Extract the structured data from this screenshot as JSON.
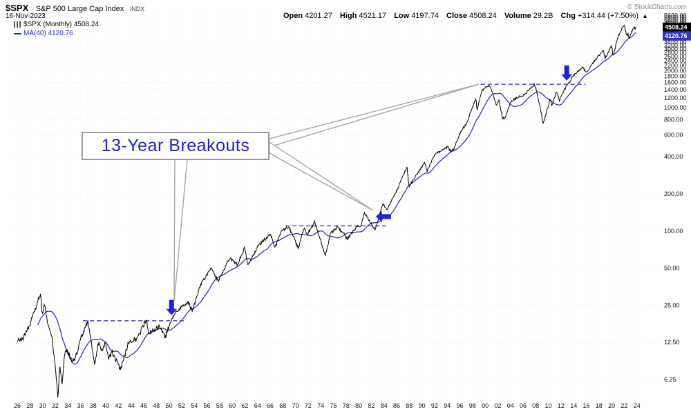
{
  "header": {
    "symbol": "$SPX",
    "name": "S&P 500 Large Cap Index",
    "exchange": "INDX",
    "date": "16-Nov-2023",
    "copyright": "© StockCharts.com",
    "quote": {
      "open_label": "Open",
      "open": "4201.27",
      "high_label": "High",
      "high": "4521.17",
      "low_label": "Low",
      "low": "4197.74",
      "close_label": "Close",
      "close": "4508.24",
      "volume_label": "Volume",
      "volume": "29.2B",
      "chg_label": "Chg",
      "chg": "+314.44 (+7.50%)",
      "chg_arrow": "▲"
    }
  },
  "legend": {
    "series": "$SPX (Monthly) 4508.24",
    "ma": "MA(40) 4120.76"
  },
  "annotation": {
    "text": "13-Year Breakouts"
  },
  "axis_tags": {
    "price": "4508.24",
    "ma": "4120.76"
  },
  "colors": {
    "price_line": "#000000",
    "ma_line": "#3333aa",
    "accent": "#2222cc",
    "arrow": "#2222dd",
    "annotation_text": "#2222cc",
    "tag_price_bg": "#000000",
    "tag_ma_bg": "#3333cc",
    "callout_border": "#aaaaaa"
  },
  "chart_data": {
    "type": "line",
    "title": "$SPX Monthly close with 40-month moving average, log scale",
    "x_unit": "year",
    "x_range": [
      1926,
      2024
    ],
    "y_scale": "log",
    "y_ticks": [
      6.25,
      12.5,
      25,
      50,
      100,
      200,
      400,
      600,
      800,
      1000,
      1200,
      1400,
      1600,
      1800,
      2000,
      2200,
      2400,
      2600,
      2800,
      3000,
      3200,
      3400,
      3600,
      3800,
      4000,
      4200,
      4400,
      4600,
      4800,
      5000,
      5200,
      5400,
      5600
    ],
    "x_tick_labels": [
      "26",
      "28",
      "30",
      "32",
      "34",
      "36",
      "38",
      "40",
      "42",
      "44",
      "46",
      "48",
      "50",
      "52",
      "54",
      "56",
      "58",
      "60",
      "62",
      "64",
      "66",
      "68",
      "70",
      "72",
      "74",
      "76",
      "78",
      "80",
      "82",
      "84",
      "86",
      "88",
      "90",
      "92",
      "94",
      "96",
      "98",
      "00",
      "02",
      "04",
      "06",
      "08",
      "10",
      "12",
      "14",
      "16",
      "18",
      "20",
      "22",
      "24"
    ],
    "series": [
      {
        "name": "$SPX monthly close",
        "color": "#000000",
        "anchors": [
          [
            1926.0,
            12.8
          ],
          [
            1926.9,
            13.5
          ],
          [
            1928.0,
            17.5
          ],
          [
            1929.0,
            24.9
          ],
          [
            1929.67,
            31.3
          ],
          [
            1929.92,
            21.4
          ],
          [
            1930.3,
            25.3
          ],
          [
            1931.0,
            15.9
          ],
          [
            1931.45,
            14.3
          ],
          [
            1932.0,
            8.0
          ],
          [
            1932.45,
            4.4
          ],
          [
            1932.7,
            8.1
          ],
          [
            1933.1,
            5.8
          ],
          [
            1933.55,
            10.9
          ],
          [
            1934.0,
            10.5
          ],
          [
            1934.6,
            8.9
          ],
          [
            1935.2,
            9.3
          ],
          [
            1936.0,
            13.4
          ],
          [
            1937.15,
            18.7
          ],
          [
            1938.25,
            8.5
          ],
          [
            1938.9,
            13.1
          ],
          [
            1939.3,
            10.6
          ],
          [
            1940.0,
            12.3
          ],
          [
            1940.45,
            9.3
          ],
          [
            1941.0,
            10.5
          ],
          [
            1942.3,
            7.5
          ],
          [
            1943.5,
            12.0
          ],
          [
            1945.0,
            13.5
          ],
          [
            1946.4,
            19.3
          ],
          [
            1946.8,
            14.7
          ],
          [
            1948.4,
            16.7
          ],
          [
            1949.45,
            13.9
          ],
          [
            1950.0,
            16.9
          ],
          [
            1951.0,
            21.7
          ],
          [
            1952.0,
            24.2
          ],
          [
            1953.0,
            26.4
          ],
          [
            1953.7,
            22.7
          ],
          [
            1955.0,
            36.6
          ],
          [
            1956.6,
            49.6
          ],
          [
            1957.8,
            39.2
          ],
          [
            1959.6,
            60.5
          ],
          [
            1960.8,
            53.4
          ],
          [
            1961.95,
            72.6
          ],
          [
            1962.5,
            52.3
          ],
          [
            1964.0,
            75.0
          ],
          [
            1965.0,
            84.8
          ],
          [
            1966.1,
            93.3
          ],
          [
            1966.75,
            73.2
          ],
          [
            1967.7,
            97.6
          ],
          [
            1968.9,
            108.4
          ],
          [
            1970.45,
            72.7
          ],
          [
            1971.3,
            104.8
          ],
          [
            1971.9,
            94.2
          ],
          [
            1973.0,
            118.1
          ],
          [
            1974.75,
            63.5
          ],
          [
            1975.5,
            95.2
          ],
          [
            1976.7,
            107.8
          ],
          [
            1978.2,
            87.0
          ],
          [
            1979.7,
            109.3
          ],
          [
            1980.25,
            106.3
          ],
          [
            1980.9,
            140.5
          ],
          [
            1982.6,
            102.4
          ],
          [
            1983.8,
            166.1
          ],
          [
            1984.55,
            150.6
          ],
          [
            1986.0,
            211.8
          ],
          [
            1987.65,
            329.8
          ],
          [
            1987.95,
            230.3
          ],
          [
            1989.0,
            277.7
          ],
          [
            1990.45,
            361.2
          ],
          [
            1990.8,
            304.0
          ],
          [
            1992.0,
            417.1
          ],
          [
            1994.1,
            481.6
          ],
          [
            1994.5,
            444.3
          ],
          [
            1995.0,
            459.3
          ],
          [
            1996.0,
            615.9
          ],
          [
            1997.0,
            740.7
          ],
          [
            1998.55,
            1186.8
          ],
          [
            1998.7,
            957.3
          ],
          [
            1999.5,
            1372.7
          ],
          [
            2000.2,
            1498.6
          ],
          [
            2000.65,
            1517.7
          ],
          [
            2001.1,
            1366.0
          ],
          [
            2001.75,
            1040.9
          ],
          [
            2002.2,
            1147.4
          ],
          [
            2002.75,
            815.3
          ],
          [
            2003.2,
            841.2
          ],
          [
            2004.0,
            1111.9
          ],
          [
            2005.0,
            1211.9
          ],
          [
            2006.0,
            1248.3
          ],
          [
            2007.8,
            1549.4
          ],
          [
            2008.2,
            1322.7
          ],
          [
            2008.9,
            896.2
          ],
          [
            2009.15,
            735.1
          ],
          [
            2010.3,
            1186.7
          ],
          [
            2010.55,
            1030.7
          ],
          [
            2011.3,
            1363.6
          ],
          [
            2011.75,
            1131.4
          ],
          [
            2012.0,
            1257.6
          ],
          [
            2012.7,
            1440.7
          ],
          [
            2013.2,
            1569.2
          ],
          [
            2014.0,
            1848.4
          ],
          [
            2015.4,
            2107.4
          ],
          [
            2016.1,
            1932.2
          ],
          [
            2016.5,
            2098.9
          ],
          [
            2018.0,
            2673.6
          ],
          [
            2018.7,
            2913.9
          ],
          [
            2018.95,
            2506.8
          ],
          [
            2020.05,
            3225.5
          ],
          [
            2020.2,
            2584.6
          ],
          [
            2021.0,
            3756.1
          ],
          [
            2021.95,
            4766.2
          ],
          [
            2022.45,
            3785.4
          ],
          [
            2022.6,
            4130.3
          ],
          [
            2022.75,
            3585.6
          ],
          [
            2023.05,
            3970.0
          ],
          [
            2023.55,
            4588.9
          ],
          [
            2023.8,
            4193.8
          ],
          [
            2023.875,
            4508.24
          ]
        ]
      },
      {
        "name": "MA(40)",
        "color": "#3333aa",
        "derived": "sma40"
      }
    ],
    "breakout_lines": [
      {
        "x1": 1936.4,
        "x2": 1952.6,
        "v": 18.7
      },
      {
        "x1": 1968.4,
        "x2": 1984.6,
        "v": 110
      },
      {
        "x1": 1999.3,
        "x2": 2015.9,
        "v": 1550
      }
    ],
    "arrows": [
      {
        "dir": "down",
        "x": 1950.4,
        "v": 20.8
      },
      {
        "dir": "left",
        "x": 1982.7,
        "v": 131
      },
      {
        "dir": "down",
        "x": 2012.9,
        "v": 1660
      }
    ]
  }
}
